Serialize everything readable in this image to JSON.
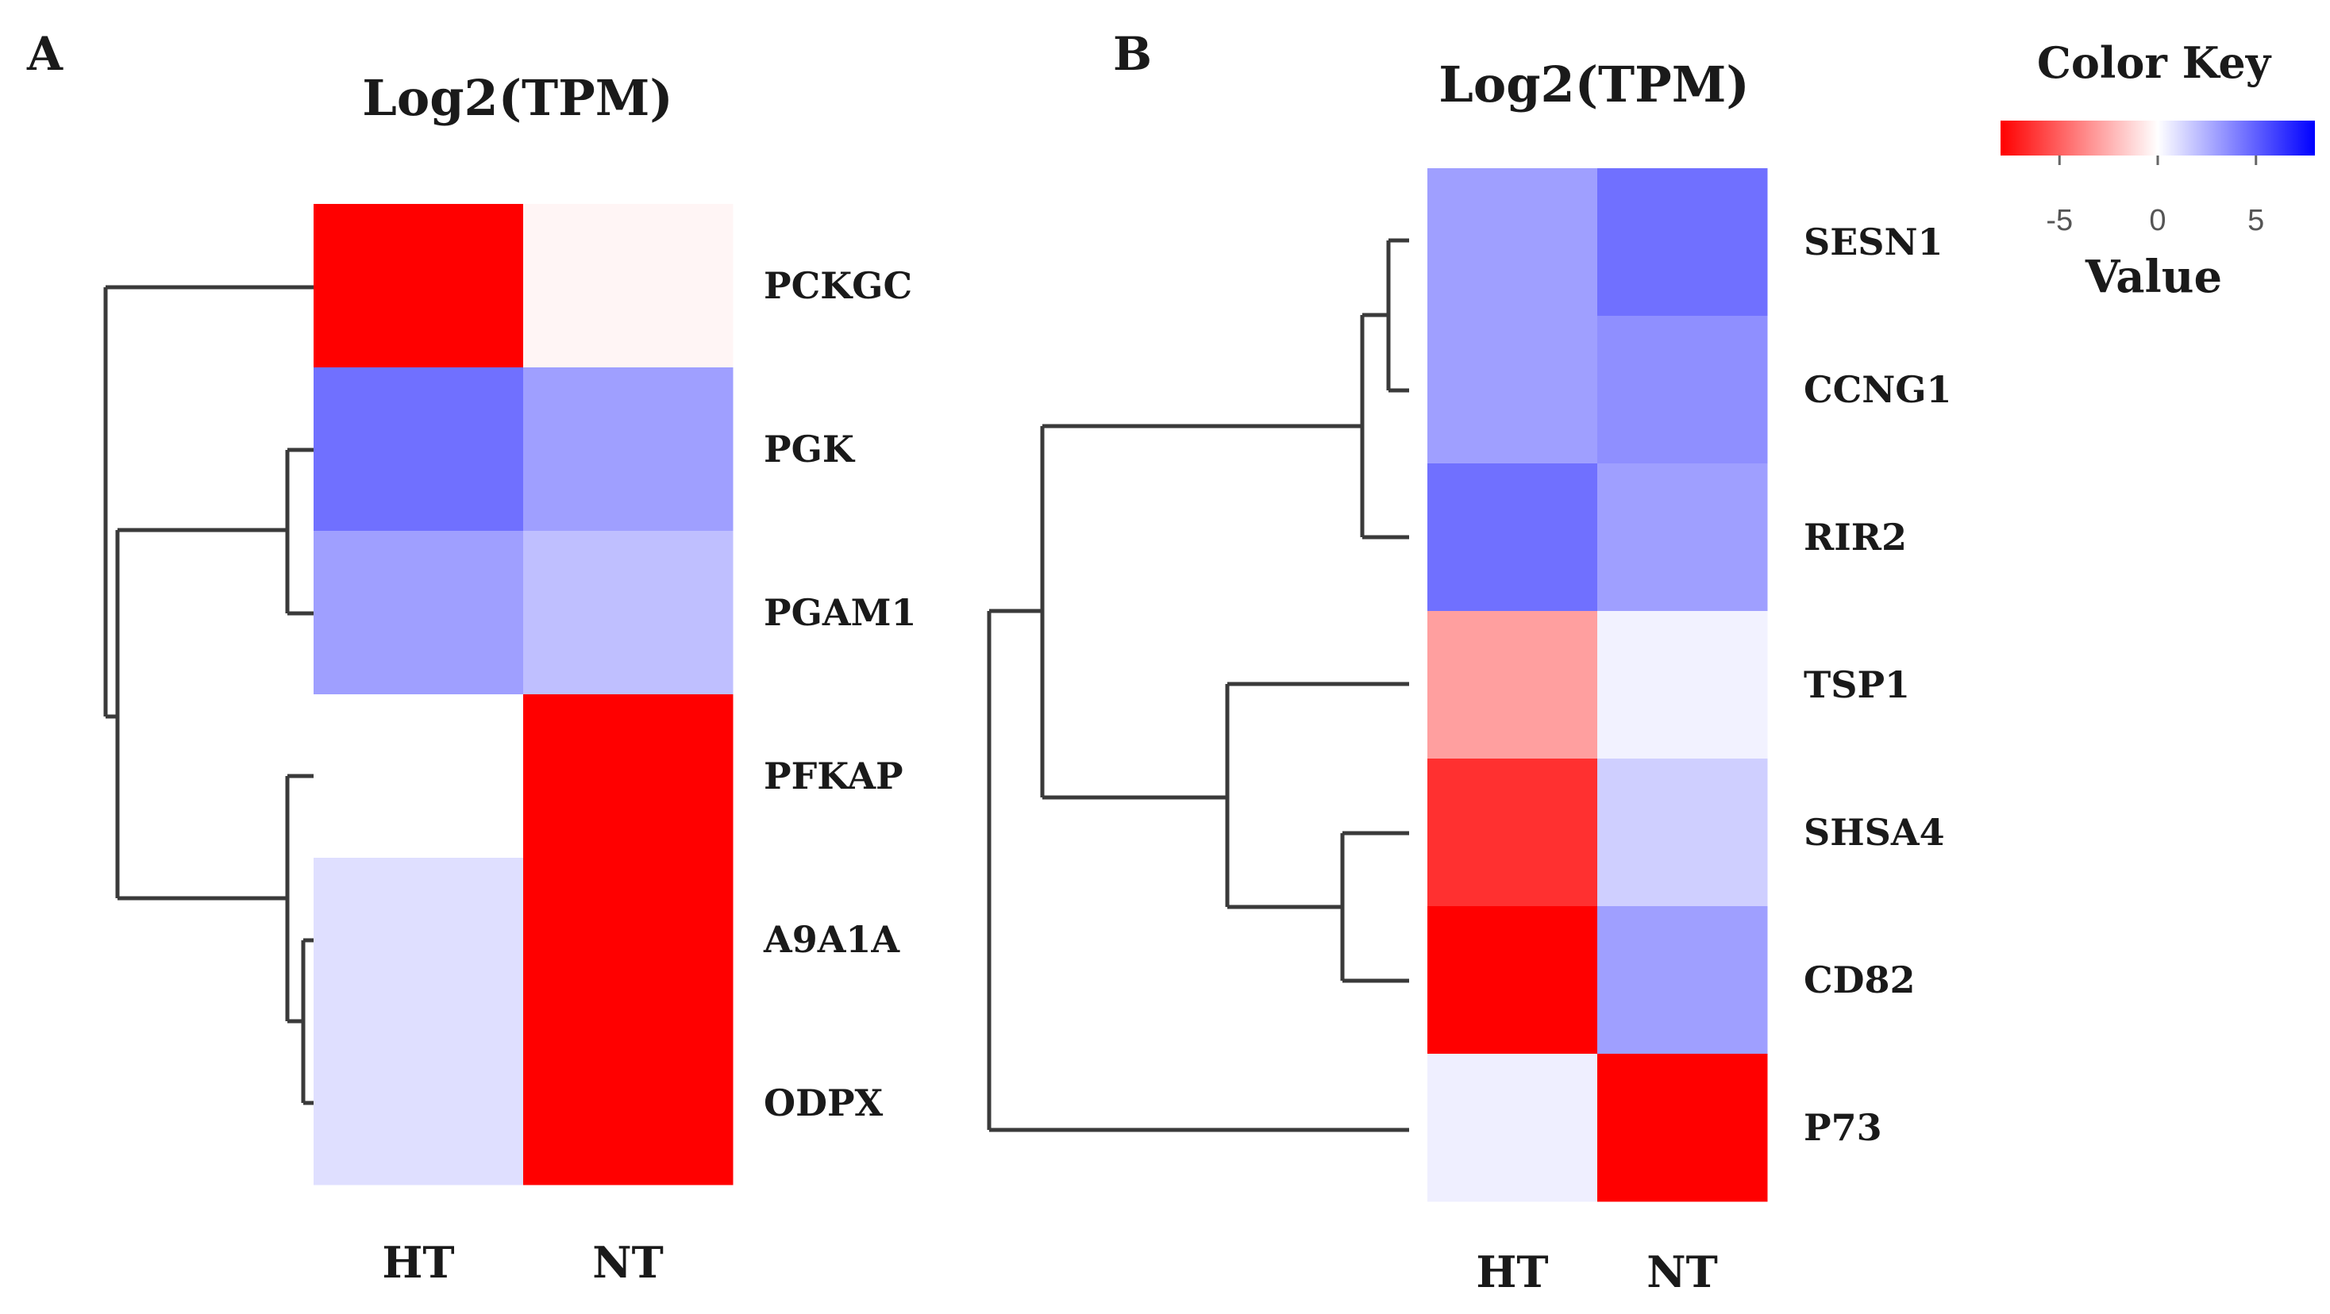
{
  "chart_data": [
    {
      "type": "heatmap",
      "panel_label": "A",
      "title": "Log2(TPM)",
      "columns": [
        "HT",
        "NT"
      ],
      "rows": [
        "PCKGC",
        "PGK",
        "PGAM1",
        "PFKAP",
        "A9A1A",
        "ODPX"
      ],
      "values": [
        [
          -8,
          -0.3
        ],
        [
          4.5,
          3
        ],
        [
          3,
          2
        ],
        [
          0,
          -8
        ],
        [
          1,
          -8
        ],
        [
          1,
          -8
        ]
      ],
      "dendrogram": "rows"
    },
    {
      "type": "heatmap",
      "panel_label": "B",
      "title": "Log2(TPM)",
      "columns": [
        "HT",
        "NT"
      ],
      "rows": [
        "SESN1",
        "CCNG1",
        "RIR2",
        "TSP1",
        "SHSA4",
        "CD82",
        "P73"
      ],
      "values": [
        [
          3,
          4.5
        ],
        [
          3,
          3.5
        ],
        [
          4.5,
          3
        ],
        [
          -3,
          0.4
        ],
        [
          -6.5,
          1.5
        ],
        [
          -8,
          3
        ],
        [
          0.5,
          -8
        ]
      ],
      "dendrogram": "rows"
    }
  ],
  "color_key": {
    "title": "Color Key",
    "xlabel": "Value",
    "range": [
      -8,
      8
    ],
    "ticks": [
      -5,
      0,
      5
    ],
    "tick_labels": [
      "-5",
      "0",
      "5"
    ],
    "low_color": "#ff0000",
    "mid_color": "#ffffff",
    "high_color": "#0000ff"
  }
}
